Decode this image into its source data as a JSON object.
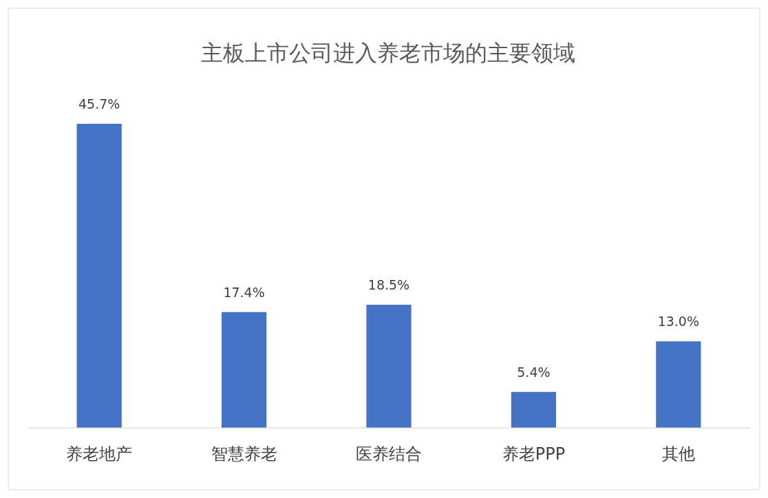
{
  "chart_data": {
    "type": "bar",
    "title": "主板上市公司进入养老市场的主要领域",
    "categories": [
      "养老地产",
      "智慧养老",
      "医养结合",
      "养老PPP",
      "其他"
    ],
    "values": [
      45.7,
      17.4,
      18.5,
      5.4,
      13.0
    ],
    "value_labels": [
      "45.7%",
      "17.4%",
      "18.5%",
      "5.4%",
      "13.0%"
    ],
    "color": "#4472c4"
  }
}
